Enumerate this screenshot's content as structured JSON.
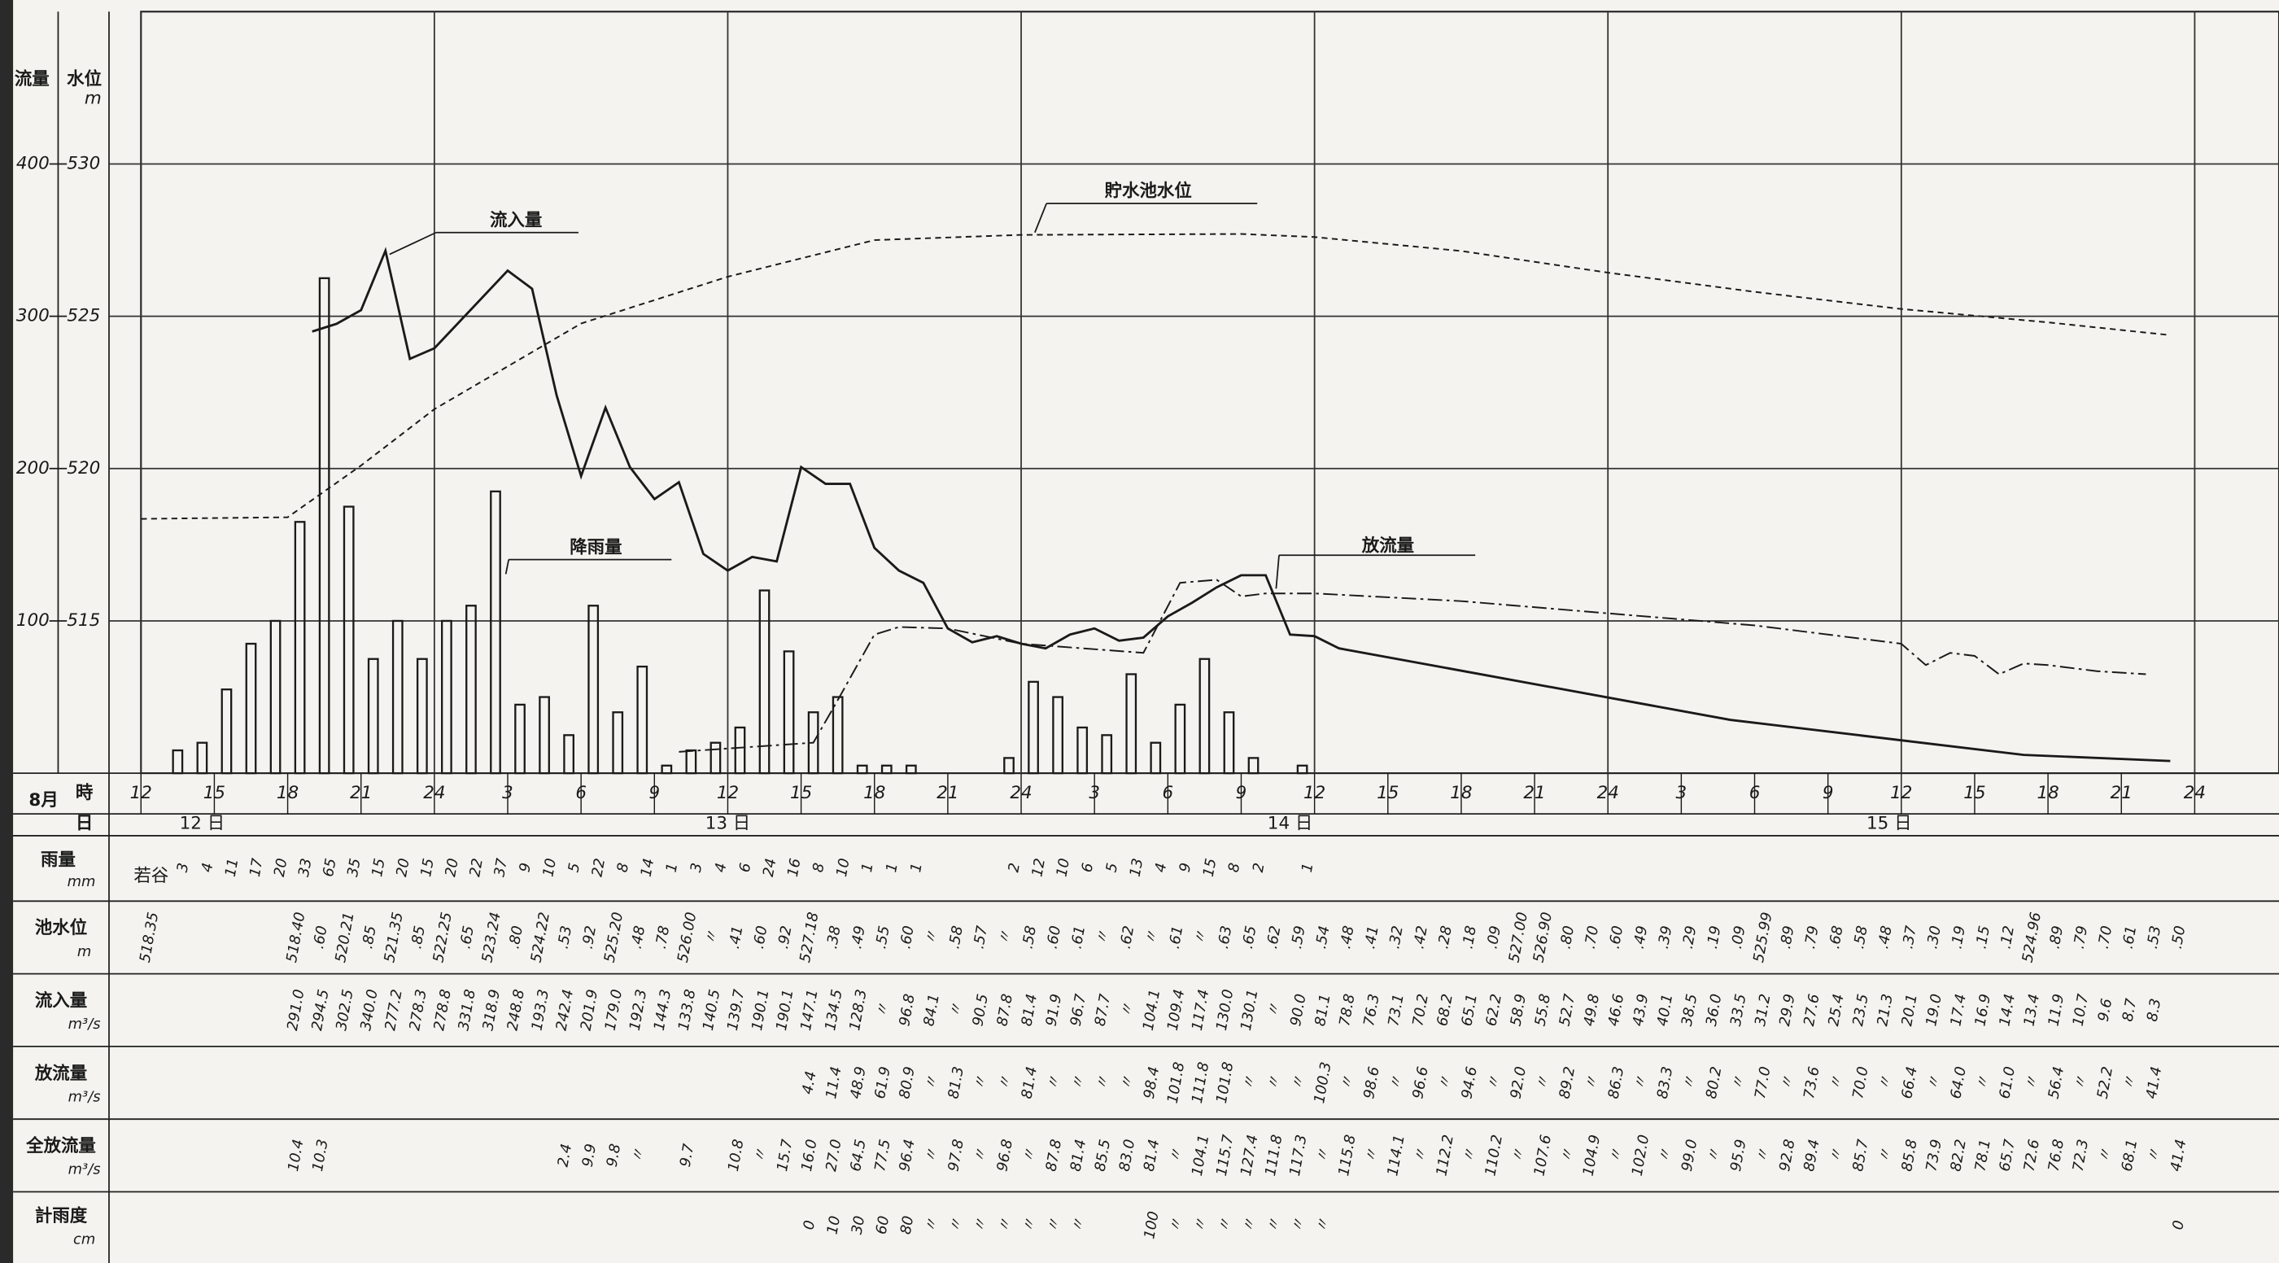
{
  "chart_data": {
    "type": "bar_line",
    "axis_label_left": "流量",
    "axis_label_right": "水位",
    "axis_unit": "m",
    "xlim": [
      0,
      84
    ],
    "xticks": [
      {
        "value": 0,
        "label": "12"
      },
      {
        "value": 3,
        "label": "15"
      },
      {
        "value": 6,
        "label": "18"
      },
      {
        "value": 9,
        "label": "21"
      },
      {
        "value": 12,
        "label": "24"
      },
      {
        "value": 15,
        "label": "3"
      },
      {
        "value": 18,
        "label": "6"
      },
      {
        "value": 21,
        "label": "9"
      },
      {
        "value": 24,
        "label": "12"
      },
      {
        "value": 27,
        "label": "15"
      },
      {
        "value": 30,
        "label": "18"
      },
      {
        "value": 33,
        "label": "21"
      },
      {
        "value": 36,
        "label": "24"
      },
      {
        "value": 39,
        "label": "3"
      },
      {
        "value": 42,
        "label": "6"
      },
      {
        "value": 45,
        "label": "9"
      },
      {
        "value": 48,
        "label": "12"
      },
      {
        "value": 51,
        "label": "15"
      },
      {
        "value": 54,
        "label": "18"
      },
      {
        "value": 57,
        "label": "21"
      },
      {
        "value": 60,
        "label": "24"
      },
      {
        "value": 63,
        "label": "3"
      },
      {
        "value": 66,
        "label": "6"
      },
      {
        "value": 69,
        "label": "9"
      },
      {
        "value": 72,
        "label": "12"
      },
      {
        "value": 75,
        "label": "15"
      },
      {
        "value": 78,
        "label": "18"
      },
      {
        "value": 81,
        "label": "21"
      },
      {
        "value": 84,
        "label": "24"
      }
    ],
    "ylim": [
      0,
      500
    ],
    "yticks": [
      100,
      200,
      300,
      400
    ],
    "y2lim": [
      510,
      535
    ],
    "y2ticks": [
      515,
      520,
      525,
      530
    ],
    "y3lim": [
      0,
      100
    ],
    "grid": true,
    "color": "#1a1a1a",
    "series": [
      {
        "name": "降雨量",
        "type": "bar",
        "axis": "y3",
        "x": [
          1.5,
          2.5,
          3.5,
          4.5,
          5.5,
          6.5,
          7.5,
          8.5,
          9.5,
          10.5,
          11.5,
          12.5,
          13.5,
          14.5,
          15.5,
          16.5,
          17.5,
          18.5,
          19.5,
          20.5,
          21.5,
          22.5,
          23.5,
          24.5,
          25.5,
          26.5,
          27.5,
          28.5,
          29.5,
          30.5,
          31.5,
          35.5,
          36.5,
          37.5,
          38.5,
          39.5,
          40.5,
          41.5,
          42.5,
          43.5,
          44.5,
          45.5,
          47.5
        ],
        "values": [
          3,
          4,
          11,
          17,
          20,
          33,
          65,
          35,
          15,
          20,
          15,
          20,
          22,
          37,
          9,
          10,
          5,
          22,
          8,
          14,
          1,
          3,
          4,
          6,
          24,
          16,
          8,
          10,
          1,
          1,
          1,
          2,
          12,
          10,
          6,
          5,
          13,
          4,
          9,
          15,
          8,
          2,
          1
        ]
      },
      {
        "name": "流入量",
        "type": "line",
        "axis": "y",
        "style": "solid",
        "x": [
          7,
          8,
          9,
          10,
          11,
          12,
          15,
          16,
          17,
          18,
          19,
          20,
          21,
          22,
          23,
          24,
          25,
          26,
          27,
          28,
          29,
          30,
          31,
          32,
          33,
          34,
          35,
          36,
          37,
          38,
          39,
          40,
          41,
          42,
          43,
          44,
          45,
          46,
          47,
          48,
          49,
          65,
          77,
          83
        ],
        "values": [
          290,
          295,
          304,
          343,
          272,
          279,
          330,
          318,
          248,
          195,
          240,
          201,
          180,
          191,
          144,
          133,
          142,
          139,
          201,
          190,
          190,
          148,
          133,
          125,
          95,
          86,
          90,
          85,
          82,
          91,
          95,
          87,
          89,
          103,
          112,
          122,
          130,
          130,
          91,
          90,
          82,
          35,
          12,
          8
        ]
      },
      {
        "name": "貯水池水位",
        "type": "line",
        "axis": "y2",
        "style": "dashed",
        "x": [
          0,
          6,
          9,
          12,
          18,
          24,
          30,
          36,
          45,
          48,
          54,
          60,
          66,
          72,
          78,
          83
        ],
        "values": [
          518.35,
          518.4,
          520.1,
          521.95,
          524.76,
          526.3,
          527.5,
          527.67,
          527.7,
          527.6,
          527.14,
          526.43,
          525.8,
          525.24,
          524.8,
          524.38
        ]
      },
      {
        "name": "放流量",
        "type": "line",
        "axis": "y",
        "style": "dashdot",
        "x": [
          22,
          27.5,
          28.5,
          30,
          31,
          33,
          36,
          41,
          42.5,
          44,
          45,
          46,
          48,
          54,
          60,
          66,
          72,
          73,
          74,
          75,
          76,
          77,
          78,
          80,
          82
        ],
        "values": [
          14,
          20,
          48,
          91,
          96,
          95,
          85,
          79,
          125,
          127,
          116,
          118,
          118,
          113,
          105,
          97,
          85,
          71,
          79,
          77,
          65,
          72,
          71,
          67,
          65
        ]
      }
    ]
  },
  "table": {
    "month": "8月",
    "hour_header": "時",
    "day_header": "日",
    "days": [
      "12 日",
      "13 日",
      "14 日",
      "15 日"
    ],
    "rain_row": {
      "label": "雨量",
      "unit": "mm",
      "station": "若谷"
    },
    "rows": [
      {
        "label": "池水位",
        "unit": "m",
        "cells": {
          "0": "518.35",
          "6": "518.40",
          "7": ".60",
          "8": "520.21",
          "9": ".85",
          "10": "521.35",
          "11": ".85",
          "12": "522.25",
          "13": ".65",
          "14": "523.24",
          "15": ".80",
          "16": "524.22",
          "17": ".53",
          "18": ".92",
          "19": "525.20",
          "20": ".48",
          "21": ".78",
          "22": "526.00",
          "23": "〃",
          "24": ".41",
          "25": ".60",
          "26": ".92",
          "27": "527.18",
          "28": ".38",
          "29": ".49",
          "30": ".55",
          "31": ".60",
          "32": "〃",
          "33": ".58",
          "34": ".57",
          "35": "〃",
          "36": ".58",
          "37": ".60",
          "38": ".61",
          "39": "〃",
          "40": ".62",
          "41": "〃",
          "42": ".61",
          "43": "〃",
          "44": ".63",
          "45": ".65",
          "46": ".62",
          "47": ".59",
          "48": ".54",
          "49": ".48",
          "50": ".41",
          "51": ".32",
          "52": ".42",
          "53": ".28",
          "54": ".18",
          "55": ".09",
          "56": "527.00",
          "57": "526.90",
          "58": ".80",
          "59": ".70",
          "60": ".60",
          "61": ".49",
          "62": ".39",
          "63": ".29",
          "64": ".19",
          "65": ".09",
          "66": "525.99",
          "67": ".89",
          "68": ".79",
          "69": ".68",
          "70": ".58",
          "71": ".48",
          "72": ".37",
          "73": ".30",
          "74": ".19",
          "75": ".15",
          "76": ".12",
          "77": "524.96",
          "78": ".89",
          "79": ".79",
          "80": ".70",
          "81": ".61",
          "82": ".53",
          "83": ".50"
        }
      },
      {
        "label": "流入量",
        "unit": "m³/s",
        "cells": {
          "6": "291.0",
          "7": "294.5",
          "8": "302.5",
          "9": "340.0",
          "10": "277.2",
          "11": "278.3",
          "12": "278.8",
          "13": "331.8",
          "14": "318.9",
          "15": "248.8",
          "16": "193.3",
          "17": "242.4",
          "18": "201.9",
          "19": "179.0",
          "20": "192.3",
          "21": "144.3",
          "22": "133.8",
          "23": "140.5",
          "24": "139.7",
          "25": "190.1",
          "26": "190.1",
          "27": "147.1",
          "28": "134.5",
          "29": "128.3",
          "30": "〃",
          "31": "96.8",
          "32": "84.1",
          "33": "〃",
          "34": "90.5",
          "35": "87.8",
          "36": "81.4",
          "37": "91.9",
          "38": "96.7",
          "39": "87.7",
          "40": "〃",
          "41": "104.1",
          "42": "109.4",
          "43": "117.4",
          "44": "130.0",
          "45": "130.1",
          "46": "〃",
          "47": "90.0",
          "48": "81.1",
          "49": "78.8",
          "50": "76.3",
          "51": "73.1",
          "52": "70.2",
          "53": "68.2",
          "54": "65.1",
          "55": "62.2",
          "56": "58.9",
          "57": "55.8",
          "58": "52.7",
          "59": "49.8",
          "60": "46.6",
          "61": "43.9",
          "62": "40.1",
          "63": "38.5",
          "64": "36.0",
          "65": "33.5",
          "66": "31.2",
          "67": "29.9",
          "68": "27.6",
          "69": "25.4",
          "70": "23.5",
          "71": "21.3",
          "72": "20.1",
          "73": "19.0",
          "74": "17.4",
          "75": "16.9",
          "76": "14.4",
          "77": "13.4",
          "78": "11.9",
          "79": "10.7",
          "80": "9.6",
          "81": "8.7",
          "82": "8.3"
        }
      },
      {
        "label": "放流量",
        "unit": "m³/s",
        "cells": {
          "27": "4.4",
          "28": "11.4",
          "29": "48.9",
          "30": "61.9",
          "31": "80.9",
          "32": "〃",
          "33": "81.3",
          "34": "〃",
          "35": "〃",
          "36": "81.4",
          "37": "〃",
          "38": "〃",
          "39": "〃",
          "40": "〃",
          "41": "98.4",
          "42": "101.8",
          "43": "111.8",
          "44": "101.8",
          "45": "〃",
          "46": "〃",
          "47": "〃",
          "48": "100.3",
          "49": "〃",
          "50": "98.6",
          "51": "〃",
          "52": "96.6",
          "53": "〃",
          "54": "94.6",
          "55": "〃",
          "56": "92.0",
          "57": "〃",
          "58": "89.2",
          "59": "〃",
          "60": "86.3",
          "61": "〃",
          "62": "83.3",
          "63": "〃",
          "64": "80.2",
          "65": "〃",
          "66": "77.0",
          "67": "〃",
          "68": "73.6",
          "69": "〃",
          "70": "70.0",
          "71": "〃",
          "72": "66.4",
          "73": "〃",
          "74": "64.0",
          "75": "〃",
          "76": "61.0",
          "77": "〃",
          "78": "56.4",
          "79": "〃",
          "80": "52.2",
          "81": "〃",
          "82": "41.4"
        }
      },
      {
        "label": "全放流量",
        "unit": "m³/s",
        "cells": {
          "6": "10.4",
          "7": "10.3",
          "17": "2.4",
          "18": "9.9",
          "19": "9.8",
          "20": "〃",
          "22": "9.7",
          "24": "10.8",
          "25": "〃",
          "26": "15.7",
          "27": "16.0",
          "28": "27.0",
          "29": "64.5",
          "30": "77.5",
          "31": "96.4",
          "32": "〃",
          "33": "97.8",
          "34": "〃",
          "35": "96.8",
          "36": "〃",
          "37": "87.8",
          "38": "81.4",
          "39": "85.5",
          "40": "83.0",
          "41": "81.4",
          "42": "〃",
          "43": "104.1",
          "44": "115.7",
          "45": "127.4",
          "46": "111.8",
          "47": "117.3",
          "48": "〃",
          "49": "115.8",
          "50": "〃",
          "51": "114.1",
          "52": "〃",
          "53": "112.2",
          "54": "〃",
          "55": "110.2",
          "56": "〃",
          "57": "107.6",
          "58": "〃",
          "59": "104.9",
          "60": "〃",
          "61": "102.0",
          "62": "〃",
          "63": "99.0",
          "64": "〃",
          "65": "95.9",
          "66": "〃",
          "67": "92.8",
          "68": "89.4",
          "69": "〃",
          "70": "85.7",
          "71": "〃",
          "72": "85.8",
          "73": "73.9",
          "74": "82.2",
          "75": "78.1",
          "76": "65.7",
          "77": "72.6",
          "78": "76.8",
          "79": "72.3",
          "80": "〃",
          "81": "68.1",
          "82": "〃",
          "83": "41.4"
        }
      },
      {
        "label": "計雨度",
        "unit": "cm",
        "cells": {
          "27": "0",
          "28": "10",
          "29": "30",
          "30": "60",
          "31": "80",
          "32": "〃",
          "33": "〃",
          "34": "〃",
          "35": "〃",
          "36": "〃",
          "37": "〃",
          "38": "〃",
          "41": "100",
          "42": "〃",
          "43": "〃",
          "44": "〃",
          "45": "〃",
          "46": "〃",
          "47": "〃",
          "48": "〃",
          "83": "0"
        }
      }
    ]
  }
}
